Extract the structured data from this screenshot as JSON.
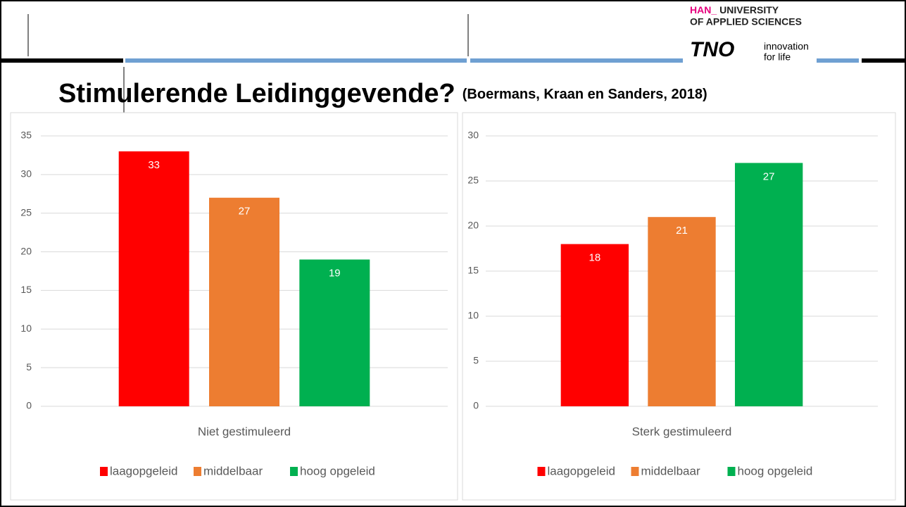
{
  "slide": {
    "logo_han_prefix": "HAN_",
    "logo_han_line1": "UNIVERSITY",
    "logo_han_line2": "OF APPLIED SCIENCES",
    "logo_tno": "TNO",
    "logo_tno_tag1": "innovation",
    "logo_tno_tag2": "for life",
    "title": "Stimulerende Leidinggevende?",
    "citation": "(Boermans, Kraan en Sanders, 2018)"
  },
  "chart_data": [
    {
      "type": "bar",
      "categories": [
        "Niet gestimuleerd"
      ],
      "ylim": [
        0,
        35
      ],
      "yticks": [
        0,
        5,
        10,
        15,
        20,
        25,
        30,
        35
      ],
      "grid": true,
      "legend": "bottom",
      "series": [
        {
          "name": "laagopgeleid",
          "color": "#ff0000",
          "values": [
            33
          ]
        },
        {
          "name": "middelbaar",
          "color": "#ed7d31",
          "values": [
            27
          ]
        },
        {
          "name": "hoog opgeleid",
          "color": "#00b050",
          "values": [
            19
          ]
        }
      ]
    },
    {
      "type": "bar",
      "categories": [
        "Sterk gestimuleerd"
      ],
      "ylim": [
        0,
        30
      ],
      "yticks": [
        0,
        5,
        10,
        15,
        20,
        25,
        30
      ],
      "grid": true,
      "legend": "bottom",
      "series": [
        {
          "name": "laagopgeleid",
          "color": "#ff0000",
          "values": [
            18
          ]
        },
        {
          "name": "middelbaar",
          "color": "#ed7d31",
          "values": [
            21
          ]
        },
        {
          "name": "hoog opgeleid",
          "color": "#00b050",
          "values": [
            27
          ]
        }
      ]
    }
  ]
}
